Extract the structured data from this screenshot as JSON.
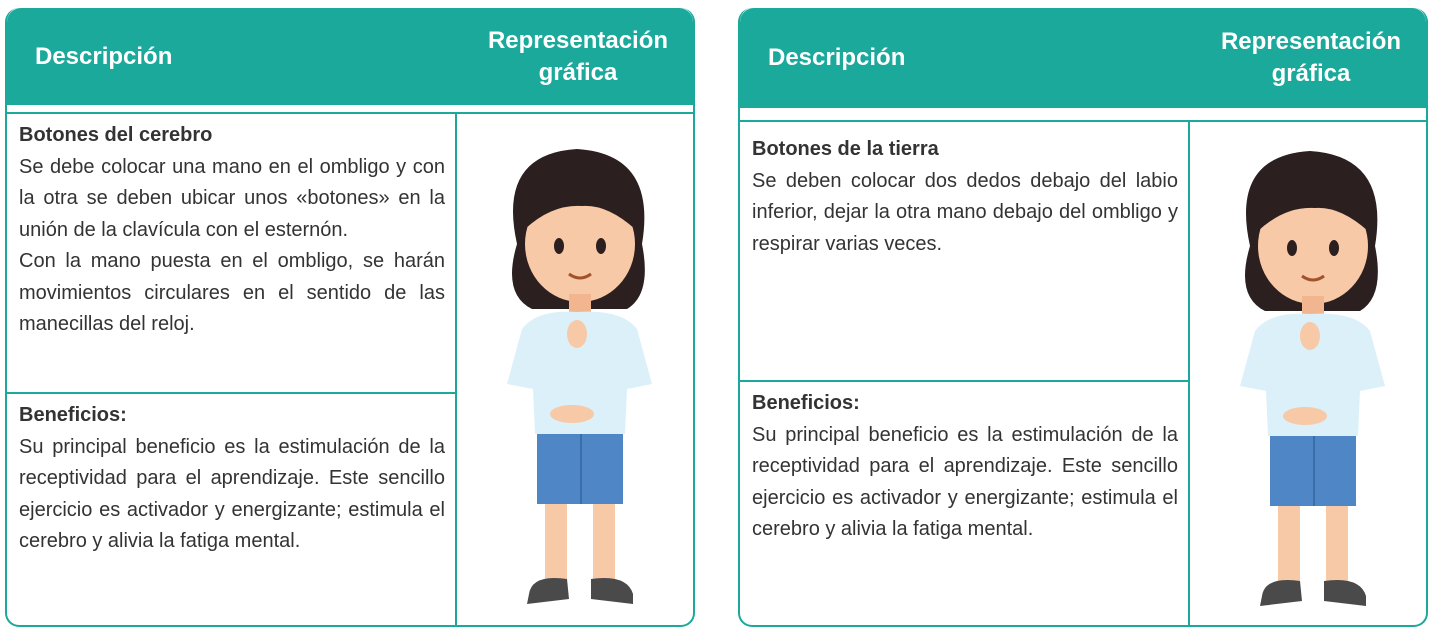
{
  "cards": [
    {
      "header": {
        "description": "Descripción",
        "graphic": "Representación gráfica"
      },
      "title": "Botones del cerebro",
      "paragraphs": [
        "Se debe colocar una mano en el ombligo y con la otra se deben ubicar unos «botones» en la unión de la clavícula con el esternón.",
        "Con la mano puesta en el ombligo, se harán movimientos circulares en el sentido de las manecillas del reloj."
      ],
      "benefits_title": "Beneficios:",
      "benefits": "Su principal beneficio es la estimulación de la receptividad para el aprendizaje. Este sencillo ejercicio es activador y energizante; estimula el cerebro y alivia la fatiga mental."
    },
    {
      "header": {
        "description": "Descripción",
        "graphic": "Representación gráfica"
      },
      "title": "Botones de la tierra",
      "paragraphs": [
        "Se deben colocar dos dedos debajo del labio inferior, dejar la otra mano debajo del ombligo y respirar varias veces."
      ],
      "benefits_title": "Beneficios:",
      "benefits": "Su principal beneficio es la estimulación de la receptividad para el aprendizaje. Este sencillo ejercicio es activador y energizante; estimula el cerebro y alivia la fatiga mental."
    }
  ]
}
